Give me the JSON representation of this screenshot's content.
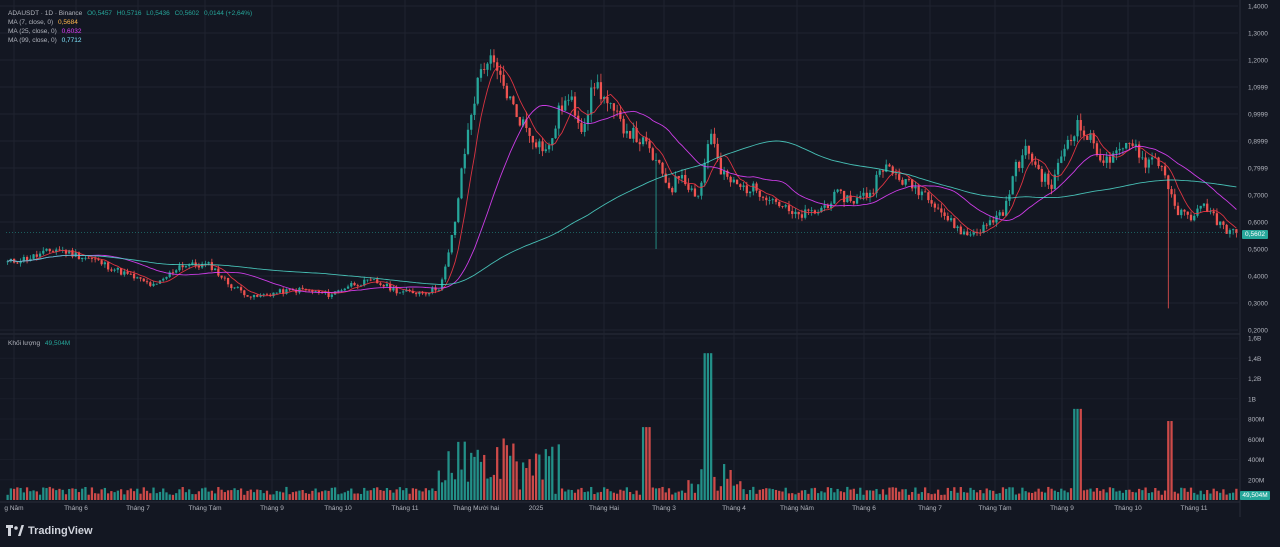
{
  "legend": {
    "symbol_line": "ADAUSDT · 1D · Binance",
    "open": "O0,5457",
    "high": "H0,5716",
    "low": "L0,5436",
    "close": "C0,5602",
    "change": "0,0144 (+2,64%)",
    "ma7_label": "MA (7, close, 0)",
    "ma7_value": "0,5684",
    "ma25_label": "MA (25, close, 0)",
    "ma25_value": "0,6032",
    "ma99_label": "MA (99, close, 0)",
    "ma99_value": "0,7712"
  },
  "volume_legend": {
    "label": "Khối lượng",
    "value": "49,504M"
  },
  "price_tag": "0,5602",
  "volume_tag": "49,504M",
  "brand": {
    "name": "TradingView"
  },
  "colors": {
    "background": "#131722",
    "up": "#26a69a",
    "down": "#ef5350",
    "ma7": "#f23645",
    "ma25": "#e040fb",
    "ma99": "#4dd0c4",
    "price_tag": "#26a69a"
  },
  "chart_data": {
    "type": "candlestick",
    "symbol": "ADAUSDT",
    "interval": "1D",
    "exchange": "Binance",
    "price_axis_ticks": [
      "1,4000",
      "1,3000",
      "1,2000",
      "1,0999",
      "0,9999",
      "0,8999",
      "0,7999",
      "0,7000",
      "0,6000",
      "0,5000",
      "0,4000",
      "0,3000",
      "0,2000"
    ],
    "volume_axis_ticks": [
      "1,6B",
      "1,4B",
      "1,2B",
      "1B",
      "800M",
      "600M",
      "400M",
      "200M"
    ],
    "x_axis_labels": [
      "g Năm",
      "Tháng 6",
      "Tháng 7",
      "Tháng Tám",
      "Tháng 9",
      "Tháng 10",
      "Tháng 11",
      "Tháng Mười hai",
      "2025",
      "Tháng Hai",
      "Tháng 3",
      "Tháng 4",
      "Tháng Năm",
      "Tháng 6",
      "Tháng 7",
      "Tháng Tám",
      "Tháng 9",
      "Tháng 10",
      "Tháng 11"
    ],
    "ylim": [
      0.2,
      1.4
    ],
    "volume_ylim": [
      0,
      1.6
    ],
    "price_knots": [
      [
        0,
        0.45
      ],
      [
        0.02,
        0.47
      ],
      [
        0.04,
        0.5
      ],
      [
        0.07,
        0.46
      ],
      [
        0.1,
        0.4
      ],
      [
        0.12,
        0.36
      ],
      [
        0.14,
        0.44
      ],
      [
        0.165,
        0.44
      ],
      [
        0.18,
        0.37
      ],
      [
        0.2,
        0.32
      ],
      [
        0.22,
        0.34
      ],
      [
        0.24,
        0.35
      ],
      [
        0.262,
        0.33
      ],
      [
        0.28,
        0.37
      ],
      [
        0.298,
        0.38
      ],
      [
        0.32,
        0.34
      ],
      [
        0.34,
        0.34
      ],
      [
        0.352,
        0.36
      ],
      [
        0.357,
        0.44
      ],
      [
        0.364,
        0.6
      ],
      [
        0.37,
        0.8
      ],
      [
        0.377,
        1.0
      ],
      [
        0.386,
        1.18
      ],
      [
        0.392,
        1.2
      ],
      [
        0.404,
        1.1
      ],
      [
        0.414,
        1.0
      ],
      [
        0.43,
        0.9
      ],
      [
        0.44,
        0.86
      ],
      [
        0.45,
        1.03
      ],
      [
        0.458,
        1.05
      ],
      [
        0.468,
        0.95
      ],
      [
        0.478,
        1.12
      ],
      [
        0.49,
        1.02
      ],
      [
        0.5,
        0.96
      ],
      [
        0.51,
        0.92
      ],
      [
        0.52,
        0.88
      ],
      [
        0.53,
        0.8
      ],
      [
        0.54,
        0.72
      ],
      [
        0.548,
        0.79
      ],
      [
        0.556,
        0.72
      ],
      [
        0.563,
        0.7
      ],
      [
        0.572,
        0.95
      ],
      [
        0.58,
        0.78
      ],
      [
        0.595,
        0.73
      ],
      [
        0.61,
        0.72
      ],
      [
        0.625,
        0.68
      ],
      [
        0.64,
        0.62
      ],
      [
        0.66,
        0.64
      ],
      [
        0.675,
        0.7
      ],
      [
        0.69,
        0.68
      ],
      [
        0.705,
        0.72
      ],
      [
        0.71,
        0.82
      ],
      [
        0.72,
        0.78
      ],
      [
        0.733,
        0.74
      ],
      [
        0.75,
        0.7
      ],
      [
        0.765,
        0.61
      ],
      [
        0.78,
        0.55
      ],
      [
        0.795,
        0.58
      ],
      [
        0.812,
        0.65
      ],
      [
        0.82,
        0.8
      ],
      [
        0.83,
        0.87
      ],
      [
        0.84,
        0.78
      ],
      [
        0.85,
        0.73
      ],
      [
        0.86,
        0.88
      ],
      [
        0.87,
        0.96
      ],
      [
        0.882,
        0.9
      ],
      [
        0.893,
        0.82
      ],
      [
        0.905,
        0.85
      ],
      [
        0.915,
        0.91
      ],
      [
        0.925,
        0.82
      ],
      [
        0.935,
        0.84
      ],
      [
        0.942,
        0.78
      ],
      [
        0.95,
        0.64
      ],
      [
        0.962,
        0.62
      ],
      [
        0.975,
        0.66
      ],
      [
        0.985,
        0.6
      ],
      [
        0.995,
        0.56
      ],
      [
        1.0,
        0.56
      ]
    ]
  }
}
